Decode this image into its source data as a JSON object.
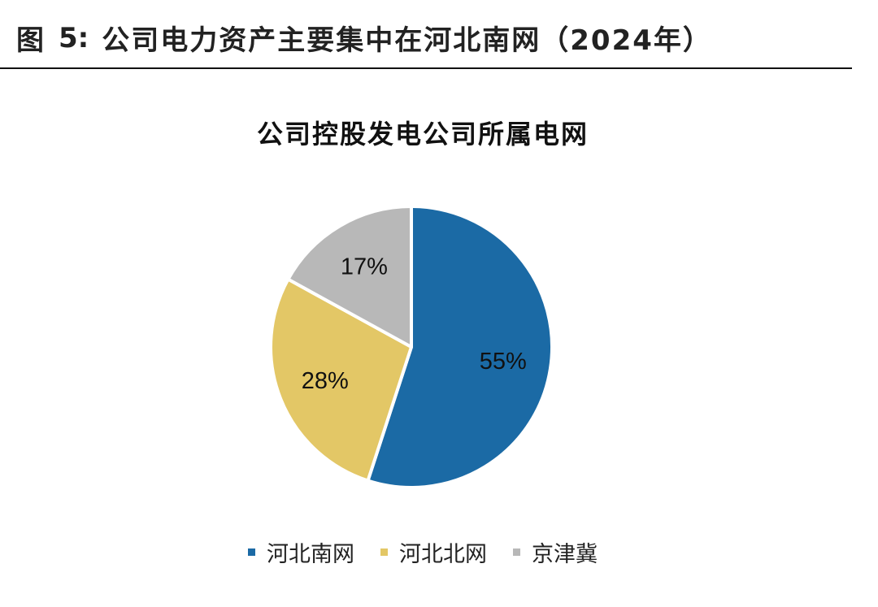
{
  "header": {
    "figure_label": "图",
    "figure_number": "5:",
    "figure_title": "公司电力资产主要集中在河北南网（2024年）"
  },
  "chart_data": {
    "type": "pie",
    "title": "公司控股发电公司所属电网",
    "slices": [
      {
        "name": "河北南网",
        "value": 55,
        "label": "55%",
        "color": "#1b6aa5"
      },
      {
        "name": "河北北网",
        "value": 28,
        "label": "28%",
        "color": "#e3c766"
      },
      {
        "name": "京津冀",
        "value": 17,
        "label": "17%",
        "color": "#b8b8b8"
      }
    ],
    "legend_position": "bottom"
  }
}
